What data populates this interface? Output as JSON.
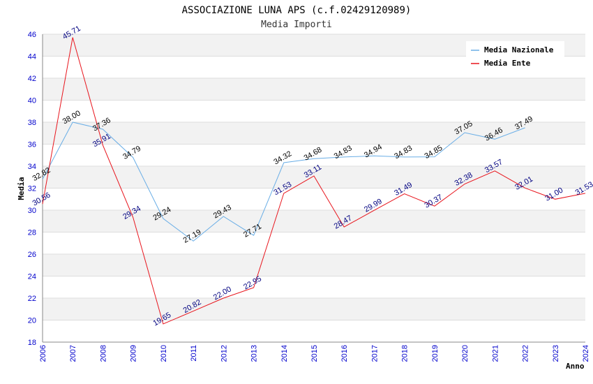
{
  "chart_data": {
    "type": "line",
    "title": "ASSOCIAZIONE LUNA APS (c.f.02429120989)",
    "subtitle": "Media Importi",
    "xlabel": "Anno",
    "ylabel": "Media",
    "ylim": [
      18,
      46
    ],
    "yticks": [
      "18",
      "20",
      "22",
      "24",
      "26",
      "28",
      "30",
      "32",
      "34",
      "36",
      "38",
      "40",
      "42",
      "44",
      "46"
    ],
    "categories": [
      "2006",
      "2007",
      "2008",
      "2009",
      "2010",
      "2011",
      "2012",
      "2013",
      "2014",
      "2015",
      "2016",
      "2017",
      "2018",
      "2019",
      "2020",
      "2021",
      "2022",
      "2023",
      "2024"
    ],
    "legend_position": "top-right",
    "series": [
      {
        "name": "Media Nazionale",
        "color": "#6aaee6",
        "values": [
          32.82,
          38.0,
          37.36,
          34.79,
          29.24,
          27.19,
          29.43,
          27.71,
          34.32,
          34.68,
          34.83,
          34.94,
          34.83,
          34.85,
          37.05,
          36.46,
          37.49,
          null,
          null
        ],
        "labels": [
          "32.82",
          "38.00",
          "37.36",
          "34.79",
          "29.24",
          "27.19",
          "29.43",
          "27.71",
          "34.32",
          "34.68",
          "34.83",
          "34.94",
          "34.83",
          "34.85",
          "37.05",
          "36.46",
          "37.49",
          null,
          null
        ]
      },
      {
        "name": "Media Ente",
        "color": "#e8141c",
        "values": [
          30.56,
          45.71,
          35.91,
          29.34,
          19.65,
          20.82,
          22.0,
          22.95,
          31.53,
          33.11,
          28.47,
          29.99,
          31.49,
          30.37,
          32.38,
          33.57,
          32.01,
          31.0,
          31.53
        ],
        "labels": [
          "30.56",
          "45.71",
          "35.91",
          "29.34",
          "19.65",
          "20.82",
          "22.00",
          "22.95",
          "31.53",
          "33.11",
          "28.47",
          "29.99",
          "31.49",
          "30.37",
          "32.38",
          "33.57",
          "32.01",
          "31.00",
          "31.53"
        ]
      }
    ]
  }
}
